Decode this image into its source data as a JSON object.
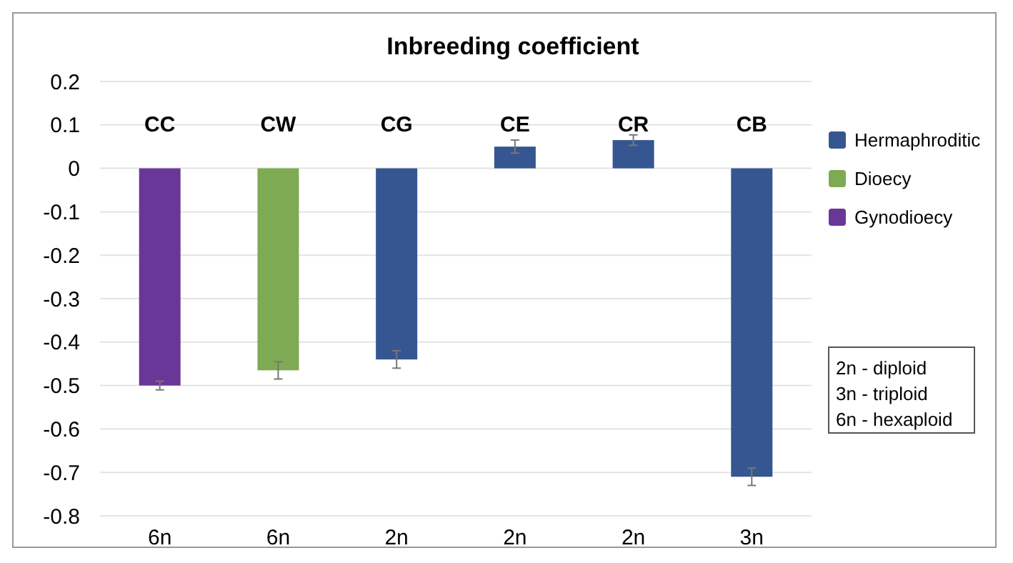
{
  "chart_data": {
    "type": "bar",
    "title": "Inbreeding coefficient",
    "categories": [
      "CC",
      "CW",
      "CG",
      "CE",
      "CR",
      "CB"
    ],
    "stacked": true,
    "series": [
      {
        "name": "Hermaphroditic",
        "color": "#355691",
        "values": [
          null,
          null,
          -0.44,
          0.05,
          0.065,
          -0.71
        ],
        "errors": [
          null,
          null,
          0.02,
          0.015,
          0.012,
          0.02
        ]
      },
      {
        "name": "Dioecy",
        "color": "#7faa54",
        "values": [
          null,
          -0.465,
          null,
          null,
          null,
          null
        ],
        "errors": [
          null,
          0.02,
          null,
          null,
          null,
          null
        ]
      },
      {
        "name": "Gynodioecy",
        "color": "#693797",
        "values": [
          -0.5,
          null,
          null,
          null,
          null,
          null
        ],
        "errors": [
          0.01,
          null,
          null,
          null,
          null,
          null
        ]
      }
    ],
    "ylim": [
      -0.8,
      0.2
    ],
    "yticks": [
      -0.8,
      -0.7,
      -0.6,
      -0.5,
      -0.4,
      -0.3,
      -0.2,
      -0.1,
      0,
      0.1,
      0.2
    ],
    "grid": "y",
    "legend": "right",
    "annotations": [
      "6n",
      "6n",
      "2n",
      "2n",
      "2n",
      "3n",
      "2n - diploid\n3n - triploid\n6n - hexaploid"
    ]
  }
}
